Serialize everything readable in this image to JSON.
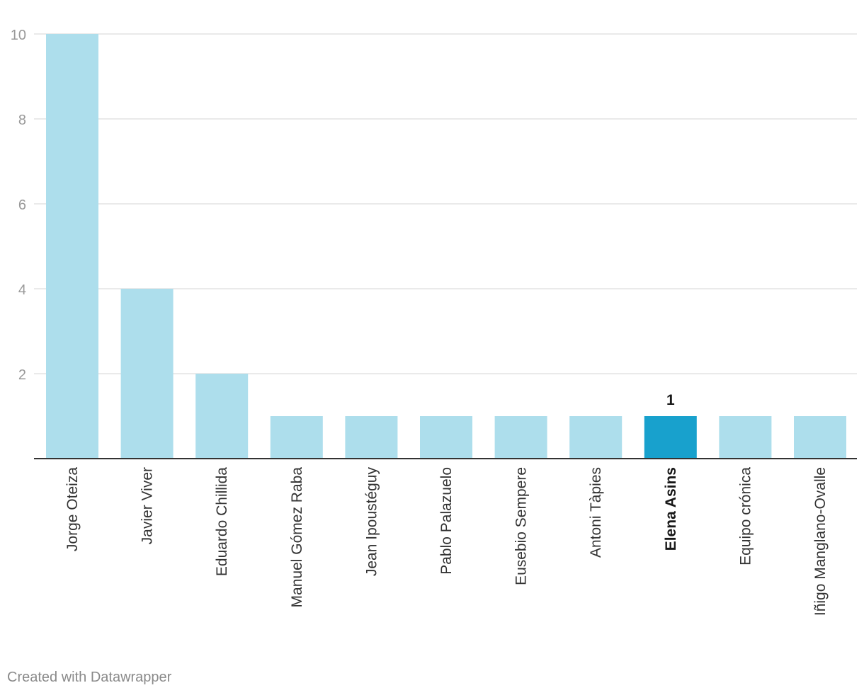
{
  "chart_data": {
    "type": "bar",
    "title": "",
    "xlabel": "",
    "ylabel": "",
    "ylim": [
      0,
      10
    ],
    "y_ticks": [
      2,
      4,
      6,
      8,
      10
    ],
    "grid": true,
    "categories": [
      "Jorge Oteiza",
      "Javier Viver",
      "Eduardo Chillida",
      "Manuel Gómez Raba",
      "Jean Ipoustéguy",
      "Pablo Palazuelo",
      "Eusebio Sempere",
      "Antoni Tàpies",
      "Elena Asins",
      "Equipo crónica",
      "Iñigo Manglano-Ovalle"
    ],
    "values": [
      10,
      4,
      2,
      1,
      1,
      1,
      1,
      1,
      1,
      1,
      1
    ],
    "highlight_index": 8,
    "highlight_label": "1",
    "colors": {
      "bar": "#addeec",
      "highlight": "#18a1cd",
      "grid": "#e3e3e3",
      "baseline": "#333333",
      "tick_text": "#999999",
      "category_text": "#333333",
      "highlight_text": "#181818"
    }
  },
  "footer": {
    "credit": "Created with Datawrapper"
  }
}
